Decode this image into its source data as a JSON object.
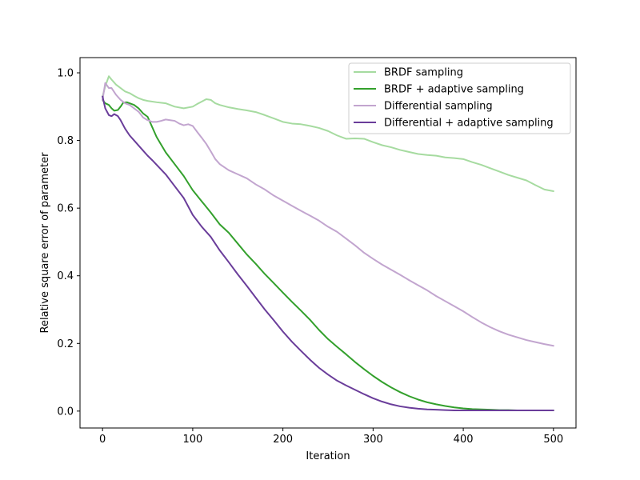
{
  "chart_data": {
    "type": "line",
    "title": "",
    "xlabel": "Iteration",
    "ylabel": "Relative square error of parameter",
    "xlim": [
      -25,
      525
    ],
    "ylim": [
      -0.05,
      1.045
    ],
    "xticks": [
      0,
      100,
      200,
      300,
      400,
      500
    ],
    "yticks": [
      0.0,
      0.2,
      0.4,
      0.6,
      0.8,
      1.0
    ],
    "xtick_labels": [
      "0",
      "100",
      "200",
      "300",
      "400",
      "500"
    ],
    "ytick_labels": [
      "0.0",
      "0.2",
      "0.4",
      "0.6",
      "0.8",
      "1.0"
    ],
    "grid": false,
    "legend_position": "top-right",
    "series": [
      {
        "name": "BRDF sampling",
        "color": "#a6dba0",
        "x": [
          0,
          3,
          7,
          10,
          15,
          20,
          25,
          30,
          35,
          40,
          45,
          50,
          60,
          70,
          80,
          90,
          100,
          105,
          110,
          115,
          120,
          125,
          130,
          140,
          150,
          160,
          170,
          180,
          190,
          200,
          210,
          220,
          230,
          240,
          250,
          260,
          270,
          280,
          290,
          300,
          310,
          320,
          330,
          340,
          350,
          360,
          370,
          380,
          390,
          400,
          410,
          420,
          430,
          440,
          450,
          460,
          470,
          480,
          490,
          500
        ],
        "values": [
          0.93,
          0.96,
          0.99,
          0.98,
          0.965,
          0.955,
          0.945,
          0.94,
          0.932,
          0.925,
          0.92,
          0.917,
          0.913,
          0.91,
          0.9,
          0.895,
          0.9,
          0.908,
          0.915,
          0.922,
          0.92,
          0.91,
          0.905,
          0.898,
          0.893,
          0.889,
          0.884,
          0.875,
          0.865,
          0.855,
          0.85,
          0.848,
          0.843,
          0.837,
          0.828,
          0.815,
          0.805,
          0.806,
          0.805,
          0.795,
          0.786,
          0.78,
          0.772,
          0.766,
          0.76,
          0.757,
          0.755,
          0.75,
          0.748,
          0.745,
          0.736,
          0.728,
          0.718,
          0.708,
          0.698,
          0.69,
          0.682,
          0.668,
          0.655,
          0.65
        ]
      },
      {
        "name": "BRDF + adaptive sampling",
        "color": "#33a02c",
        "x": [
          0,
          3,
          7,
          10,
          13,
          17,
          20,
          23,
          27,
          30,
          35,
          40,
          45,
          50,
          55,
          60,
          70,
          80,
          90,
          100,
          110,
          120,
          130,
          140,
          150,
          160,
          170,
          180,
          190,
          200,
          210,
          220,
          230,
          240,
          250,
          260,
          270,
          280,
          290,
          300,
          310,
          320,
          330,
          340,
          350,
          360,
          370,
          380,
          390,
          400,
          410,
          420,
          430,
          440,
          450,
          460,
          470,
          480,
          490,
          500
        ],
        "values": [
          0.92,
          0.91,
          0.905,
          0.895,
          0.888,
          0.89,
          0.9,
          0.912,
          0.913,
          0.91,
          0.905,
          0.895,
          0.88,
          0.87,
          0.84,
          0.81,
          0.765,
          0.73,
          0.695,
          0.653,
          0.62,
          0.587,
          0.552,
          0.527,
          0.495,
          0.463,
          0.435,
          0.405,
          0.378,
          0.35,
          0.323,
          0.297,
          0.27,
          0.24,
          0.213,
          0.19,
          0.168,
          0.145,
          0.124,
          0.104,
          0.086,
          0.07,
          0.056,
          0.044,
          0.034,
          0.026,
          0.02,
          0.015,
          0.011,
          0.008,
          0.006,
          0.005,
          0.004,
          0.003,
          0.003,
          0.002,
          0.002,
          0.002,
          0.002,
          0.002
        ]
      },
      {
        "name": "Differential sampling",
        "color": "#c2a5cf",
        "x": [
          0,
          3,
          7,
          10,
          15,
          20,
          25,
          30,
          35,
          40,
          45,
          50,
          55,
          60,
          65,
          70,
          75,
          80,
          85,
          90,
          95,
          100,
          105,
          110,
          115,
          120,
          125,
          130,
          140,
          150,
          160,
          170,
          180,
          190,
          200,
          210,
          220,
          230,
          240,
          250,
          260,
          270,
          280,
          290,
          300,
          310,
          320,
          330,
          340,
          350,
          360,
          370,
          380,
          390,
          400,
          410,
          420,
          430,
          440,
          450,
          460,
          470,
          480,
          490,
          500
        ],
        "values": [
          0.92,
          0.97,
          0.955,
          0.955,
          0.935,
          0.92,
          0.91,
          0.905,
          0.895,
          0.885,
          0.868,
          0.86,
          0.855,
          0.855,
          0.858,
          0.862,
          0.86,
          0.858,
          0.85,
          0.845,
          0.848,
          0.843,
          0.825,
          0.808,
          0.79,
          0.768,
          0.745,
          0.73,
          0.712,
          0.7,
          0.688,
          0.67,
          0.655,
          0.637,
          0.622,
          0.607,
          0.592,
          0.578,
          0.563,
          0.545,
          0.53,
          0.51,
          0.49,
          0.468,
          0.45,
          0.433,
          0.418,
          0.403,
          0.387,
          0.372,
          0.357,
          0.34,
          0.325,
          0.31,
          0.295,
          0.278,
          0.262,
          0.248,
          0.236,
          0.226,
          0.218,
          0.21,
          0.204,
          0.198,
          0.193
        ]
      },
      {
        "name": "Differential + adaptive sampling",
        "color": "#6a3d9a",
        "x": [
          0,
          3,
          7,
          10,
          13,
          17,
          20,
          25,
          30,
          35,
          40,
          45,
          50,
          55,
          60,
          70,
          80,
          90,
          100,
          110,
          120,
          130,
          140,
          150,
          160,
          170,
          180,
          190,
          200,
          210,
          220,
          230,
          240,
          250,
          260,
          270,
          280,
          290,
          300,
          310,
          320,
          330,
          340,
          350,
          360,
          370,
          380,
          390,
          400,
          410,
          420,
          430,
          440,
          450,
          460,
          470,
          480,
          490,
          500
        ],
        "values": [
          0.93,
          0.895,
          0.875,
          0.872,
          0.878,
          0.872,
          0.86,
          0.835,
          0.815,
          0.8,
          0.785,
          0.77,
          0.755,
          0.742,
          0.728,
          0.7,
          0.665,
          0.63,
          0.58,
          0.545,
          0.515,
          0.475,
          0.44,
          0.404,
          0.37,
          0.335,
          0.3,
          0.268,
          0.235,
          0.205,
          0.178,
          0.152,
          0.128,
          0.108,
          0.09,
          0.076,
          0.063,
          0.05,
          0.038,
          0.028,
          0.02,
          0.014,
          0.01,
          0.007,
          0.005,
          0.004,
          0.003,
          0.002,
          0.002,
          0.002,
          0.002,
          0.002,
          0.002,
          0.002,
          0.002,
          0.002,
          0.002,
          0.002,
          0.002
        ]
      }
    ]
  }
}
